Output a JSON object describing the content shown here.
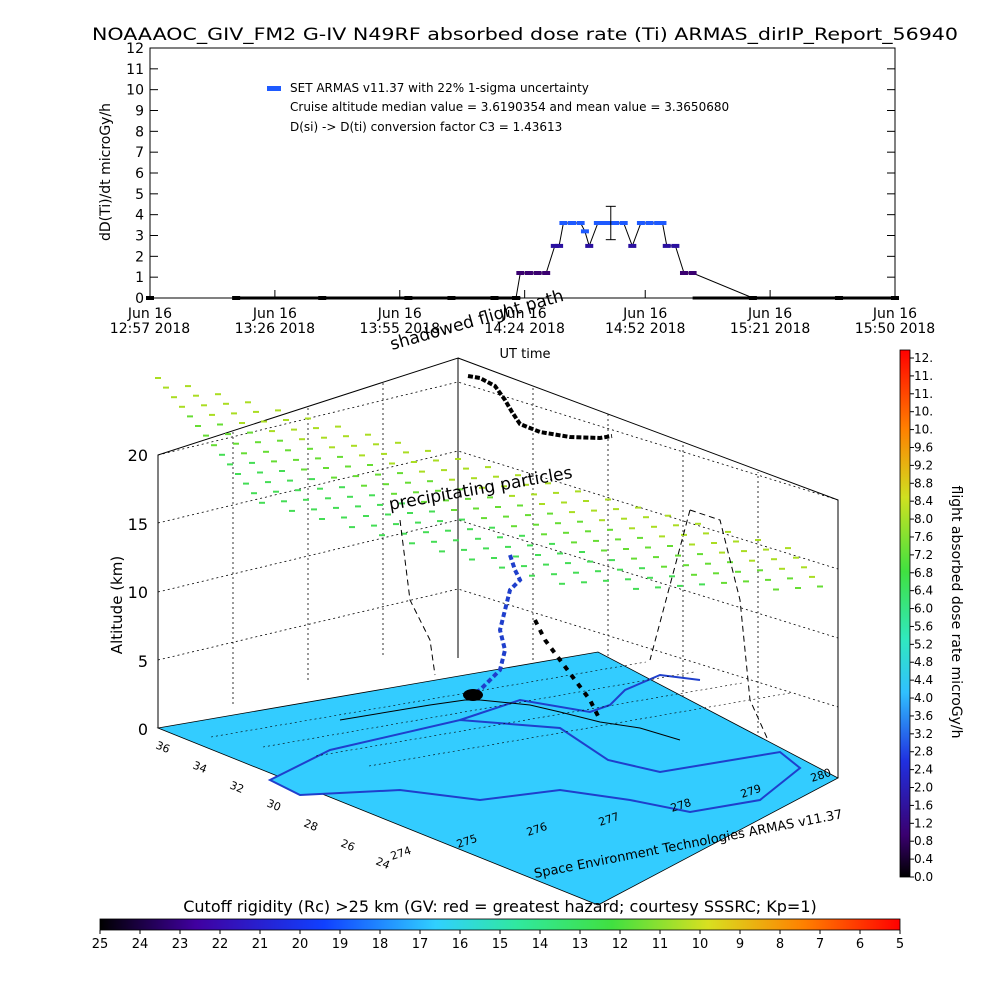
{
  "chart_data": [
    {
      "type": "scatter",
      "title": "NOAAAOC_GIV_FM2 G-IV    N49RF  absorbed dose rate (Ti) ARMAS_dirIP_Report_56940",
      "xlabel": "UT time",
      "ylabel": "dD(Ti)/dt microGy/h",
      "ylim": [
        0,
        12
      ],
      "y_ticks": [
        "0",
        "1",
        "2",
        "3",
        "4",
        "5",
        "6",
        "7",
        "8",
        "9",
        "10",
        "11",
        "12"
      ],
      "x_ticks": [
        {
          "top": "Jun 16",
          "bottom": "12:57 2018",
          "t": 0
        },
        {
          "top": "Jun 16",
          "bottom": "13:26 2018",
          "t": 29
        },
        {
          "top": "Jun 16",
          "bottom": "13:55 2018",
          "t": 58
        },
        {
          "top": "Jun 16",
          "bottom": "14:24 2018",
          "t": 87
        },
        {
          "top": "Jun 16",
          "bottom": "14:52 2018",
          "t": 115
        },
        {
          "top": "Jun 16",
          "bottom": "15:21 2018",
          "t": 144
        },
        {
          "top": "Jun 16",
          "bottom": "15:50 2018",
          "t": 173
        }
      ],
      "legend": [
        "SET ARMAS v11.37 with 22% 1-sigma uncertainty",
        "Cruise altitude median value = 3.6190354 and mean value = 3.3650680",
        "D(si) -> D(ti) conversion factor C3 = 1.43613"
      ],
      "legend_placement": "top-left",
      "series": [
        {
          "name": "SET ARMAS v11.37",
          "t": [
            0,
            20,
            40,
            60,
            70,
            80,
            85,
            86,
            88,
            90,
            92,
            94,
            95,
            96,
            98,
            100,
            101,
            102,
            104,
            105,
            106,
            108,
            110,
            112,
            114,
            116,
            118,
            119,
            120,
            122,
            124,
            126,
            140,
            160,
            173
          ],
          "values": [
            0,
            0,
            0,
            0,
            0,
            0,
            0,
            1.2,
            1.2,
            1.2,
            1.2,
            2.5,
            2.5,
            3.6,
            3.6,
            3.6,
            3.2,
            2.5,
            3.6,
            3.6,
            3.6,
            3.6,
            3.6,
            2.5,
            3.6,
            3.6,
            3.6,
            3.6,
            2.5,
            2.5,
            1.2,
            1.2,
            0,
            0,
            0
          ]
        }
      ],
      "error_bar": {
        "t": 107,
        "value": 3.6,
        "low": 2.8,
        "high": 4.4
      }
    },
    {
      "type": "scatter",
      "ylabel": "Altitude (km)",
      "z_ticks": [
        "0",
        "5",
        "10",
        "15",
        "20"
      ],
      "lat_ticks": [
        "36",
        "34",
        "32",
        "30",
        "28",
        "26",
        "24"
      ],
      "lon_ticks": [
        "274",
        "275",
        "276",
        "277",
        "278",
        "279",
        "280"
      ],
      "annotations": [
        "shadowed flight path",
        "precipitating particles"
      ],
      "credit": "Space Environment Technologies ARMAS v11.37",
      "right_colorbar": {
        "label": "flight absorbed dose rate microGy/h",
        "ticks": [
          "12.",
          "11.",
          "11.",
          "10.",
          "10.",
          "9.6",
          "9.2",
          "8.8",
          "8.4",
          "8.0",
          "7.6",
          "7.2",
          "6.8",
          "6.4",
          "6.0",
          "5.6",
          "5.2",
          "4.8",
          "4.4",
          "4.0",
          "3.6",
          "3.2",
          "2.8",
          "2.4",
          "2.0",
          "1.6",
          "1.2",
          "0.8",
          "0.4",
          "0.0"
        ]
      },
      "bottom_colorbar": {
        "label": "Cutoff rigidity (Rc) >25 km (GV: red = greatest hazard; courtesy SSSRC; Kp=1)",
        "ticks": [
          "25",
          "24",
          "23",
          "22",
          "21",
          "20",
          "19",
          "18",
          "17",
          "16",
          "15",
          "14",
          "13",
          "12",
          "11",
          "10",
          "9",
          "8",
          "7",
          "6",
          "5"
        ]
      },
      "colors": {
        "land": "#33ccff",
        "coast": "#1f3fcc",
        "rigidity_marks": "#44dd44",
        "rigidity_marks_high": "#aadd22",
        "path": "#000000"
      }
    }
  ]
}
